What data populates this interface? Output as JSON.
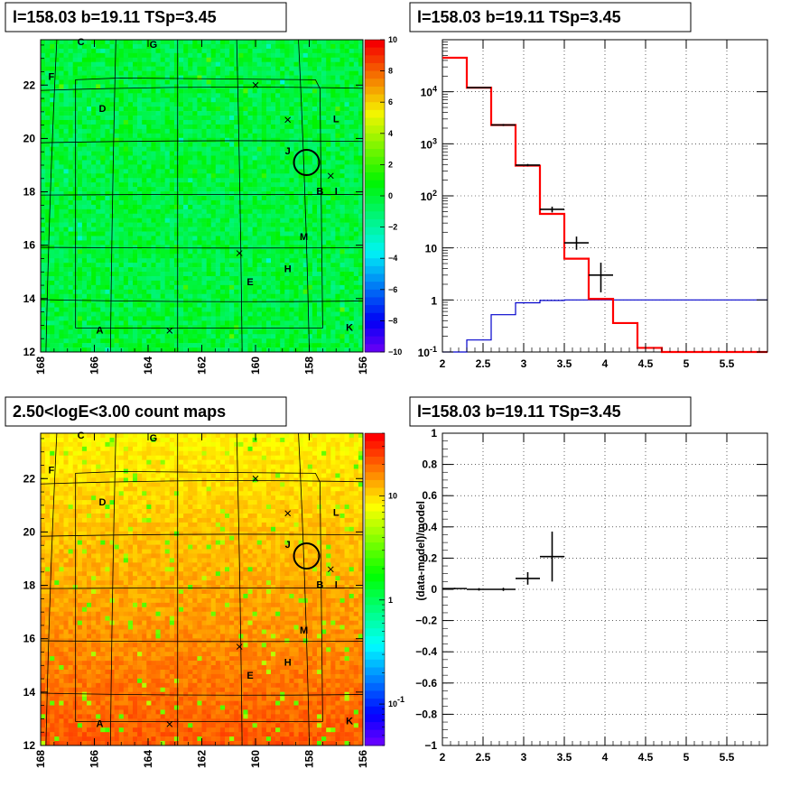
{
  "colors": {
    "model_line": "#ff0000",
    "background_line": "#0000cc",
    "data_marker": "#000000"
  },
  "chart_data": [
    {
      "type": "heatmap",
      "title": "l=158.03 b=19.11 TSp=3.45",
      "x_ticks": [
        "168",
        "166",
        "164",
        "162",
        "160",
        "158",
        "156"
      ],
      "y_ticks": [
        "12",
        "14",
        "16",
        "18",
        "20",
        "22"
      ],
      "xlim": [
        168,
        156
      ],
      "ylim": [
        12,
        23.7
      ],
      "colorbar": {
        "scale": "linear",
        "range": [
          -10,
          10
        ],
        "ticks": [
          "10",
          "8",
          "6",
          "4",
          "2",
          "0",
          "−2",
          "−4",
          "−6",
          "−8",
          "−10"
        ]
      },
      "overlay_labels": [
        {
          "t": "C",
          "l": 166.5,
          "b": 23.5
        },
        {
          "t": "G",
          "l": 163.8,
          "b": 23.4
        },
        {
          "t": "F",
          "l": 167.6,
          "b": 22.2
        },
        {
          "t": "D",
          "l": 165.7,
          "b": 21.0
        },
        {
          "t": "L",
          "l": 157.0,
          "b": 20.6
        },
        {
          "t": "J",
          "l": 158.8,
          "b": 19.4
        },
        {
          "t": "B",
          "l": 157.6,
          "b": 17.9
        },
        {
          "t": "I",
          "l": 157.0,
          "b": 17.9
        },
        {
          "t": "M",
          "l": 158.2,
          "b": 16.2
        },
        {
          "t": "H",
          "l": 158.8,
          "b": 15.0
        },
        {
          "t": "E",
          "l": 160.2,
          "b": 14.5
        },
        {
          "t": "A",
          "l": 165.8,
          "b": 12.7
        },
        {
          "t": "K",
          "l": 156.5,
          "b": 12.8
        }
      ],
      "crosses": [
        {
          "l": 160.0,
          "b": 22.0
        },
        {
          "l": 158.8,
          "b": 20.7
        },
        {
          "l": 157.2,
          "b": 18.6
        },
        {
          "l": 160.6,
          "b": 15.7
        },
        {
          "l": 163.2,
          "b": 12.8
        }
      ],
      "circle": {
        "l": 158.1,
        "b": 19.1
      }
    },
    {
      "type": "line",
      "title": "l=158.03 b=19.11 TSp=3.45",
      "xlim": [
        2,
        6
      ],
      "ylim": [
        0.1,
        100000
      ],
      "log_y": true,
      "grid": true,
      "x_ticks": [
        "2",
        "2.5",
        "3",
        "3.5",
        "4",
        "4.5",
        "5",
        "5.5"
      ],
      "y_ticks": [
        "10^-1",
        "1",
        "10",
        "10^2",
        "10^3",
        "10^4"
      ],
      "series": [
        {
          "role": "model",
          "edges": [
            2.0,
            2.3,
            2.6,
            2.9,
            3.2,
            3.5,
            3.8,
            4.1,
            4.4,
            4.7,
            5.0,
            5.3,
            5.6,
            5.9,
            6.0
          ],
          "values": [
            45000,
            12000,
            2300,
            380,
            45,
            6.2,
            1.05,
            0.36,
            0.12,
            0.1,
            0.1,
            0.1,
            0.1,
            0.1
          ]
        },
        {
          "role": "background",
          "edges": [
            2.0,
            2.3,
            2.6,
            2.9,
            3.2,
            3.5,
            3.8,
            4.1,
            6.0
          ],
          "values": [
            0.05,
            0.17,
            0.52,
            0.88,
            0.98,
            1.0,
            1.0,
            1.0
          ]
        },
        {
          "role": "data",
          "points": [
            {
              "x": 2.45,
              "xerr": 0.15,
              "y": 12000,
              "ylo": 11800,
              "yhi": 12200
            },
            {
              "x": 2.75,
              "xerr": 0.15,
              "y": 2300,
              "ylo": 2200,
              "yhi": 2400
            },
            {
              "x": 3.05,
              "xerr": 0.15,
              "y": 390,
              "ylo": 370,
              "yhi": 410
            },
            {
              "x": 3.35,
              "xerr": 0.15,
              "y": 55,
              "ylo": 48,
              "yhi": 62
            },
            {
              "x": 3.65,
              "xerr": 0.15,
              "y": 12.5,
              "ylo": 9.2,
              "yhi": 16.5
            },
            {
              "x": 3.95,
              "xerr": 0.15,
              "y": 3.0,
              "ylo": 1.4,
              "yhi": 5.2
            }
          ]
        }
      ]
    },
    {
      "type": "heatmap",
      "title": "2.50<logE<3.00 count maps",
      "x_ticks": [
        "168",
        "166",
        "164",
        "162",
        "160",
        "158",
        "156"
      ],
      "y_ticks": [
        "12",
        "14",
        "16",
        "18",
        "20",
        "22"
      ],
      "xlim": [
        168,
        156
      ],
      "ylim": [
        12,
        23.7
      ],
      "colorbar": {
        "scale": "log",
        "range": [
          0.04,
          40
        ],
        "ticks": [
          "10",
          "1",
          "10^-1"
        ]
      },
      "overlay_labels": [
        {
          "t": "C",
          "l": 166.5,
          "b": 23.5
        },
        {
          "t": "G",
          "l": 163.8,
          "b": 23.4
        },
        {
          "t": "F",
          "l": 167.6,
          "b": 22.2
        },
        {
          "t": "D",
          "l": 165.7,
          "b": 21.0
        },
        {
          "t": "L",
          "l": 157.0,
          "b": 20.6
        },
        {
          "t": "J",
          "l": 158.8,
          "b": 19.4
        },
        {
          "t": "B",
          "l": 157.6,
          "b": 17.9
        },
        {
          "t": "I",
          "l": 157.0,
          "b": 17.9
        },
        {
          "t": "M",
          "l": 158.2,
          "b": 16.2
        },
        {
          "t": "H",
          "l": 158.8,
          "b": 15.0
        },
        {
          "t": "E",
          "l": 160.2,
          "b": 14.5
        },
        {
          "t": "A",
          "l": 165.8,
          "b": 12.7
        },
        {
          "t": "K",
          "l": 156.5,
          "b": 12.8
        }
      ],
      "crosses": [
        {
          "l": 160.0,
          "b": 22.0
        },
        {
          "l": 158.8,
          "b": 20.7
        },
        {
          "l": 157.2,
          "b": 18.6
        },
        {
          "l": 160.6,
          "b": 15.7
        },
        {
          "l": 163.2,
          "b": 12.8
        }
      ],
      "circle": {
        "l": 158.1,
        "b": 19.1
      }
    },
    {
      "type": "scatter",
      "title": "l=158.03 b=19.11 TSp=3.45",
      "ylabel": "(data-model)/model",
      "xlim": [
        2,
        6
      ],
      "ylim": [
        -1,
        1
      ],
      "grid": true,
      "x_ticks": [
        "2",
        "2.5",
        "3",
        "3.5",
        "4",
        "4.5",
        "5",
        "5.5"
      ],
      "y_ticks": [
        "−1",
        "−0.8",
        "−0.6",
        "−0.4",
        "−0.2",
        "0",
        "0.2",
        "0.4",
        "0.6",
        "0.8",
        "1"
      ],
      "points": [
        {
          "x": 2.15,
          "xerr": 0.15,
          "y": 0.005,
          "yerr": 0.005
        },
        {
          "x": 2.45,
          "xerr": 0.15,
          "y": 0.0,
          "yerr": 0.008
        },
        {
          "x": 2.75,
          "xerr": 0.15,
          "y": 0.0,
          "yerr": 0.01
        },
        {
          "x": 3.05,
          "xerr": 0.15,
          "y": 0.07,
          "yerr": 0.04
        },
        {
          "x": 3.35,
          "xerr": 0.15,
          "y": 0.21,
          "yerr": 0.16
        }
      ]
    }
  ]
}
